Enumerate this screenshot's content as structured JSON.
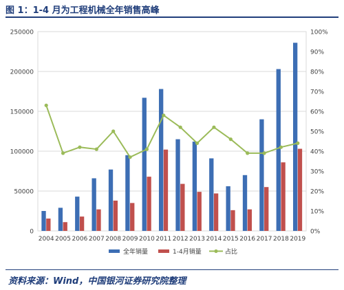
{
  "header": {
    "title": "图 1：1-4 月为工程机械全年销售高峰"
  },
  "footer": {
    "source": "资料来源：Wind，中国银河证券研究院整理"
  },
  "colors": {
    "full_year": "#3d6eb4",
    "jan_apr": "#c0504d",
    "ratio": "#9bbb59",
    "title": "#1f3d7a"
  },
  "chart_data": {
    "type": "bar",
    "categories": [
      "2004",
      "2005",
      "2006",
      "2007",
      "2008",
      "2009",
      "2010",
      "2011",
      "2012",
      "2013",
      "2014",
      "2015",
      "2016",
      "2017",
      "2018",
      "2019"
    ],
    "series": [
      {
        "name": "全年销量",
        "kind": "bar",
        "axis": "left",
        "values": [
          25000,
          29000,
          43000,
          66000,
          77000,
          95000,
          167000,
          178000,
          115000,
          112000,
          91000,
          56000,
          70000,
          140000,
          203000,
          236000
        ]
      },
      {
        "name": "1-4月销量",
        "kind": "bar",
        "axis": "left",
        "values": [
          15500,
          11000,
          18000,
          27000,
          38000,
          35000,
          68000,
          102000,
          59000,
          49000,
          47000,
          26000,
          27000,
          55000,
          86000,
          103000
        ]
      },
      {
        "name": "占比",
        "kind": "line",
        "axis": "right",
        "values": [
          0.63,
          0.39,
          0.42,
          0.41,
          0.5,
          0.37,
          0.41,
          0.58,
          0.52,
          0.44,
          0.52,
          0.46,
          0.39,
          0.39,
          0.42,
          0.44
        ]
      }
    ],
    "y_left": {
      "min": 0,
      "max": 250000,
      "ticks": [
        "0",
        "50000",
        "100000",
        "150000",
        "200000",
        "250000"
      ]
    },
    "y_right": {
      "min": 0,
      "max": 1.0,
      "ticks": [
        "0%",
        "10%",
        "20%",
        "30%",
        "40%",
        "50%",
        "60%",
        "70%",
        "80%",
        "90%",
        "100%"
      ]
    },
    "legend": [
      "全年销量",
      "1-4月销量",
      "占比"
    ],
    "legend_position": "bottom",
    "grid": true
  }
}
